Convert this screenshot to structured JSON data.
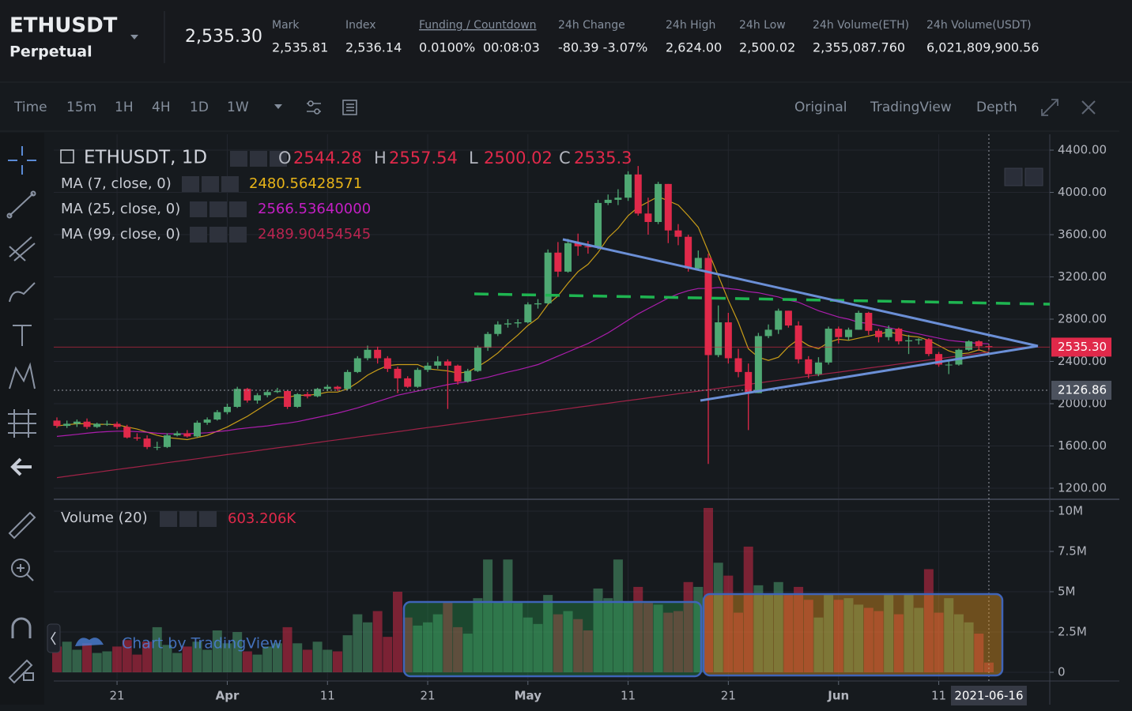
{
  "header": {
    "symbol": "ETHUSDT",
    "contract": "Perpetual",
    "last_price": "2,535.30",
    "stats": [
      {
        "label": "Mark",
        "value": "2,535.81"
      },
      {
        "label": "Index",
        "value": "2,536.14"
      },
      {
        "label": "Funding / Countdown",
        "value": "0.0100%",
        "value2": "00:08:03"
      },
      {
        "label": "24h Change",
        "value": "-80.39 -3.07%"
      },
      {
        "label": "24h High",
        "value": "2,624.00"
      },
      {
        "label": "24h Low",
        "value": "2,500.02"
      },
      {
        "label": "24h Volume(ETH)",
        "value": "2,355,087.760"
      },
      {
        "label": "24h Volume(USDT)",
        "value": "6,021,809,900.56"
      }
    ]
  },
  "toolbar": {
    "intervals": [
      "Time",
      "15m",
      "1H",
      "4H",
      "1D",
      "1W"
    ],
    "active_interval": 4,
    "views": [
      "Original",
      "TradingView",
      "Depth"
    ],
    "active_view": 1
  },
  "chart_data": {
    "type": "candlestick",
    "title": "ETHUSDT, 1D",
    "ohlc_labels": [
      "O",
      "H",
      "L",
      "C"
    ],
    "up_color": "#4fa873",
    "down_color": "#e0294a",
    "grid": true,
    "x": [
      "2021-03-15",
      "2021-03-16",
      "2021-03-17",
      "2021-03-18",
      "2021-03-19",
      "2021-03-20",
      "2021-03-21",
      "2021-03-22",
      "2021-03-23",
      "2021-03-24",
      "2021-03-25",
      "2021-03-26",
      "2021-03-27",
      "2021-03-28",
      "2021-03-29",
      "2021-03-30",
      "2021-03-31",
      "2021-04-01",
      "2021-04-02",
      "2021-04-03",
      "2021-04-04",
      "2021-04-05",
      "2021-04-06",
      "2021-04-07",
      "2021-04-08",
      "2021-04-09",
      "2021-04-10",
      "2021-04-11",
      "2021-04-12",
      "2021-04-13",
      "2021-04-14",
      "2021-04-15",
      "2021-04-16",
      "2021-04-17",
      "2021-04-18",
      "2021-04-19",
      "2021-04-20",
      "2021-04-21",
      "2021-04-22",
      "2021-04-23",
      "2021-04-24",
      "2021-04-25",
      "2021-04-26",
      "2021-04-27",
      "2021-04-28",
      "2021-04-29",
      "2021-04-30",
      "2021-05-01",
      "2021-05-02",
      "2021-05-03",
      "2021-05-04",
      "2021-05-05",
      "2021-05-06",
      "2021-05-07",
      "2021-05-08",
      "2021-05-09",
      "2021-05-10",
      "2021-05-11",
      "2021-05-12",
      "2021-05-13",
      "2021-05-14",
      "2021-05-15",
      "2021-05-16",
      "2021-05-17",
      "2021-05-18",
      "2021-05-19",
      "2021-05-20",
      "2021-05-21",
      "2021-05-22",
      "2021-05-23",
      "2021-05-24",
      "2021-05-25",
      "2021-05-26",
      "2021-05-27",
      "2021-05-28",
      "2021-05-29",
      "2021-05-30",
      "2021-05-31",
      "2021-06-01",
      "2021-06-02",
      "2021-06-03",
      "2021-06-04",
      "2021-06-05",
      "2021-06-06",
      "2021-06-07",
      "2021-06-08",
      "2021-06-09",
      "2021-06-10",
      "2021-06-11",
      "2021-06-12",
      "2021-06-13",
      "2021-06-14",
      "2021-06-15",
      "2021-06-16"
    ],
    "open": [
      1840,
      1790,
      1810,
      1830,
      1780,
      1810,
      1810,
      1780,
      1680,
      1670,
      1590,
      1590,
      1700,
      1720,
      1690,
      1820,
      1850,
      1920,
      1970,
      2140,
      2030,
      2080,
      2110,
      2120,
      1970,
      2090,
      2070,
      2140,
      2160,
      2140,
      2300,
      2430,
      2510,
      2430,
      2330,
      2240,
      2160,
      2320,
      2360,
      2400,
      2360,
      2210,
      2310,
      2530,
      2660,
      2750,
      2760,
      2770,
      2940,
      2950,
      3430,
      3250,
      3520,
      3490,
      3480,
      3900,
      3930,
      3950,
      4170,
      3800,
      3720,
      4080,
      3640,
      3580,
      3280,
      3380,
      2460,
      2770,
      2430,
      2300,
      2100,
      2640,
      2700,
      2880,
      2740,
      2420,
      2280,
      2390,
      2710,
      2630,
      2700,
      2860,
      2690,
      2630,
      2710,
      2590,
      2600,
      2610,
      2470,
      2370,
      2370,
      2510,
      2590,
      2544.28
    ],
    "high": [
      1870,
      1840,
      1850,
      1860,
      1820,
      1840,
      1830,
      1800,
      1720,
      1700,
      1640,
      1720,
      1740,
      1750,
      1840,
      1870,
      1940,
      2000,
      2160,
      2150,
      2100,
      2130,
      2150,
      2130,
      2100,
      2110,
      2150,
      2180,
      2170,
      2320,
      2450,
      2550,
      2540,
      2450,
      2350,
      2260,
      2340,
      2390,
      2450,
      2420,
      2370,
      2330,
      2550,
      2680,
      2780,
      2800,
      2800,
      2960,
      2990,
      3460,
      3530,
      3560,
      3610,
      3540,
      3930,
      3980,
      4030,
      4200,
      4250,
      3950,
      4100,
      4080,
      3700,
      3600,
      3450,
      3420,
      2930,
      2860,
      2520,
      2380,
      2670,
      2750,
      2900,
      2880,
      2780,
      2450,
      2440,
      2730,
      2730,
      2720,
      2880,
      2870,
      2710,
      2740,
      2720,
      2650,
      2620,
      2620,
      2490,
      2420,
      2520,
      2600,
      2600,
      2557.54
    ],
    "low": [
      1770,
      1770,
      1780,
      1760,
      1770,
      1790,
      1760,
      1670,
      1650,
      1570,
      1560,
      1580,
      1690,
      1680,
      1680,
      1800,
      1840,
      1900,
      1960,
      2010,
      2000,
      2060,
      2100,
      1950,
      1960,
      2050,
      2060,
      2120,
      2120,
      2130,
      2290,
      2410,
      2380,
      2300,
      2100,
      2150,
      2150,
      2300,
      2330,
      1950,
      2180,
      2200,
      2300,
      2500,
      2640,
      2720,
      2720,
      2760,
      2900,
      2940,
      3200,
      3240,
      3400,
      3420,
      3460,
      3880,
      3880,
      3920,
      3780,
      3600,
      3700,
      3520,
      3500,
      3250,
      3260,
      1430,
      2440,
      2380,
      2250,
      1750,
      2100,
      2620,
      2660,
      2720,
      2380,
      2240,
      2260,
      2370,
      2570,
      2600,
      2700,
      2650,
      2580,
      2600,
      2560,
      2470,
      2560,
      2450,
      2350,
      2280,
      2360,
      2500,
      2500,
      2500.02
    ],
    "close": [
      1790,
      1810,
      1830,
      1780,
      1810,
      1810,
      1780,
      1680,
      1670,
      1590,
      1590,
      1700,
      1720,
      1690,
      1820,
      1850,
      1920,
      1970,
      2140,
      2030,
      2080,
      2110,
      2120,
      1970,
      2090,
      2070,
      2140,
      2160,
      2140,
      2300,
      2430,
      2510,
      2430,
      2330,
      2240,
      2160,
      2320,
      2360,
      2400,
      2360,
      2210,
      2310,
      2530,
      2660,
      2750,
      2760,
      2770,
      2940,
      2950,
      3430,
      3250,
      3520,
      3490,
      3480,
      3900,
      3930,
      3950,
      4170,
      3800,
      3720,
      4080,
      3640,
      3580,
      3280,
      3380,
      2460,
      2770,
      2430,
      2300,
      2100,
      2640,
      2700,
      2880,
      2740,
      2420,
      2280,
      2390,
      2710,
      2630,
      2700,
      2860,
      2690,
      2630,
      2710,
      2590,
      2600,
      2610,
      2470,
      2370,
      2370,
      2510,
      2590,
      2544.28,
      2535.3
    ],
    "xlim": [
      "2021-03-15",
      "2021-06-22"
    ],
    "xticks": [
      {
        "value": "2021-03-21",
        "label": "21"
      },
      {
        "value": "2021-04-01",
        "label": "Apr"
      },
      {
        "value": "2021-04-11",
        "label": "11"
      },
      {
        "value": "2021-04-21",
        "label": "21"
      },
      {
        "value": "2021-05-01",
        "label": "May"
      },
      {
        "value": "2021-05-11",
        "label": "11"
      },
      {
        "value": "2021-05-21",
        "label": "21"
      },
      {
        "value": "2021-06-01",
        "label": "Jun"
      },
      {
        "value": "2021-06-11",
        "label": "11"
      }
    ],
    "ylim": [
      1110,
      4550
    ],
    "yticks": [
      {
        "value": 1200,
        "label": "1200.00"
      },
      {
        "value": 1600,
        "label": "1600.00"
      },
      {
        "value": 2000,
        "label": "2000.00"
      },
      {
        "value": 2400,
        "label": "2400.00"
      },
      {
        "value": 2800,
        "label": "2800.00"
      },
      {
        "value": 3200,
        "label": "3200.00"
      },
      {
        "value": 3600,
        "label": "3600.00"
      },
      {
        "value": 4000,
        "label": "4000.00"
      },
      {
        "value": 4400,
        "label": "4400.00"
      }
    ],
    "last_price_label": "2535.30",
    "crosshair_price": 2126.86,
    "moving_averages": [
      {
        "name": "MA (7, close, 0)",
        "color": "#e8b418",
        "last_value_label": "2480.56428571",
        "values": [
          1790,
          1800,
          1810,
          1810,
          1805,
          1805,
          1800,
          1780,
          1760,
          1730,
          1700,
          1680,
          1670,
          1660,
          1680,
          1700,
          1740,
          1780,
          1830,
          1880,
          1940,
          2000,
          2060,
          2060,
          2080,
          2080,
          2090,
          2110,
          2110,
          2140,
          2200,
          2270,
          2320,
          2360,
          2370,
          2370,
          2370,
          2330,
          2320,
          2310,
          2290,
          2300,
          2350,
          2410,
          2480,
          2570,
          2650,
          2740,
          2810,
          2940,
          3020,
          3140,
          3250,
          3320,
          3430,
          3570,
          3660,
          3780,
          3860,
          3910,
          3960,
          3920,
          3880,
          3780,
          3670,
          3440,
          3210,
          2980,
          2770,
          2520,
          2440,
          2410,
          2440,
          2540,
          2610,
          2550,
          2520,
          2580,
          2610,
          2600,
          2620,
          2640,
          2660,
          2680,
          2660,
          2640,
          2630,
          2600,
          2550,
          2500,
          2470,
          2480,
          2510,
          2480.56428571
        ]
      },
      {
        "name": "MA (25, close, 0)",
        "color": "#c51fc5",
        "last_value_label": "2566.53640000",
        "values": [
          1690,
          1700,
          1710,
          1720,
          1730,
          1735,
          1740,
          1740,
          1735,
          1730,
          1720,
          1715,
          1715,
          1715,
          1720,
          1725,
          1735,
          1745,
          1760,
          1770,
          1780,
          1790,
          1805,
          1815,
          1830,
          1850,
          1870,
          1890,
          1910,
          1935,
          1960,
          1990,
          2020,
          2050,
          2080,
          2100,
          2120,
          2140,
          2160,
          2180,
          2195,
          2210,
          2230,
          2250,
          2275,
          2300,
          2320,
          2345,
          2370,
          2410,
          2450,
          2490,
          2530,
          2570,
          2620,
          2670,
          2730,
          2790,
          2850,
          2900,
          2950,
          3000,
          3040,
          3070,
          3090,
          3090,
          3100,
          3090,
          3080,
          3060,
          3050,
          3030,
          3010,
          2980,
          2960,
          2920,
          2880,
          2850,
          2820,
          2800,
          2770,
          2760,
          2740,
          2720,
          2700,
          2680,
          2660,
          2640,
          2620,
          2600,
          2590,
          2580,
          2570,
          2566.5364
        ]
      },
      {
        "name": "MA (99, close, 0)",
        "color": "#b8244f",
        "last_value_label": "2489.90454545",
        "values": [
          1300,
          1313,
          1326,
          1338,
          1351,
          1364,
          1377,
          1390,
          1402,
          1415,
          1428,
          1441,
          1454,
          1466,
          1479,
          1492,
          1505,
          1518,
          1530,
          1543,
          1556,
          1569,
          1582,
          1594,
          1607,
          1620,
          1633,
          1646,
          1658,
          1671,
          1684,
          1697,
          1710,
          1722,
          1735,
          1748,
          1761,
          1774,
          1786,
          1799,
          1812,
          1825,
          1838,
          1850,
          1863,
          1876,
          1889,
          1902,
          1914,
          1927,
          1940,
          1953,
          1966,
          1978,
          1991,
          2004,
          2017,
          2030,
          2042,
          2055,
          2068,
          2081,
          2094,
          2106,
          2119,
          2132,
          2145,
          2158,
          2170,
          2183,
          2196,
          2209,
          2222,
          2234,
          2247,
          2260,
          2273,
          2286,
          2298,
          2311,
          2324,
          2337,
          2350,
          2362,
          2375,
          2388,
          2401,
          2414,
          2426,
          2439,
          2452,
          2465,
          2477,
          2489.90454545
        ]
      }
    ],
    "volume": {
      "title": "Volume (20)",
      "last_value_label": "603.206K",
      "values": [
        1.6,
        1.9,
        1.4,
        1.8,
        1.2,
        1.3,
        1.6,
        2.0,
        1.1,
        1.9,
        2.8,
        1.7,
        1.2,
        1.6,
        1.9,
        1.4,
        2.6,
        1.8,
        2.5,
        1.3,
        1.1,
        1.6,
        1.8,
        2.8,
        1.8,
        1.4,
        1.9,
        1.4,
        1.3,
        2.3,
        3.6,
        3.1,
        3.8,
        2.2,
        5.0,
        3.4,
        2.9,
        3.1,
        3.6,
        4.4,
        2.8,
        2.4,
        4.6,
        7.0,
        4.4,
        7.0,
        4.3,
        3.4,
        3.0,
        4.8,
        3.6,
        3.8,
        3.3,
        2.6,
        5.2,
        4.6,
        7.0,
        4.4,
        5.3,
        4.3,
        4.2,
        3.7,
        3.8,
        5.6,
        5.3,
        10.2,
        6.8,
        6.0,
        3.7,
        7.8,
        5.4,
        4.9,
        5.6,
        4.8,
        5.3,
        4.5,
        3.4,
        4.8,
        4.5,
        4.6,
        4.2,
        4.0,
        3.8,
        4.8,
        3.6,
        4.9,
        4.0,
        6.4,
        3.7,
        4.6,
        3.6,
        3.1,
        2.4,
        0.603206
      ],
      "ylim": [
        -0.44,
        10.59
      ],
      "yticks": [
        0,
        {
          "value": 2.5,
          "label": "2.5M"
        },
        {
          "value": 5,
          "label": "5M"
        },
        {
          "value": 7.5,
          "label": "7.5M"
        },
        {
          "value": 10,
          "label": "10M"
        }
      ]
    },
    "watermark": "Chart by TradingView"
  }
}
